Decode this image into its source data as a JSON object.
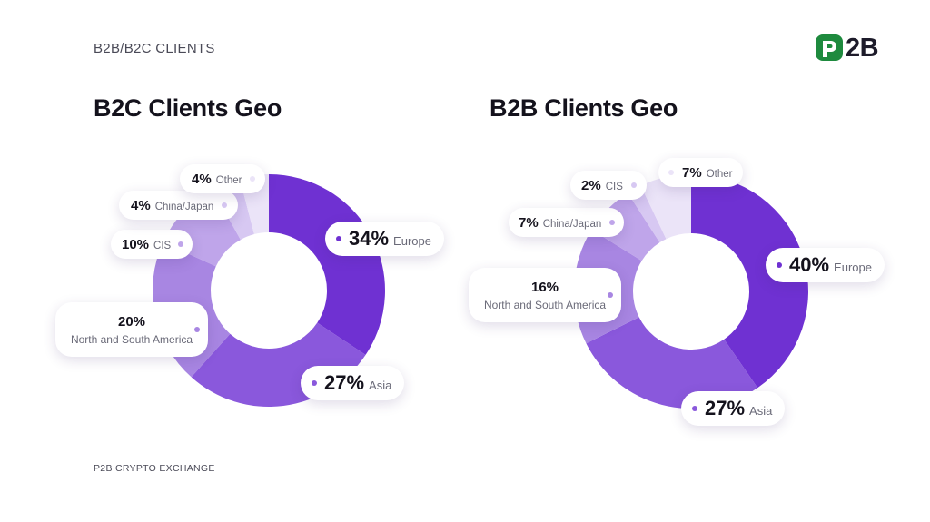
{
  "header": {
    "section_label": "B2B/B2C CLIENTS",
    "logo_text": "2B"
  },
  "footer": {
    "text": "P2B CRYPTO EXCHANGE"
  },
  "colors": {
    "brand_green": "#1e8a3e",
    "text_dark": "#14121c",
    "text_muted": "#6a6a78"
  },
  "chart_data": [
    {
      "type": "donut",
      "title": "B2C Clients Geo",
      "categories": [
        "Europe",
        "Asia",
        "North and South America",
        "CIS",
        "China/Japan",
        "Other"
      ],
      "values": [
        34,
        27,
        20,
        10,
        4,
        4
      ],
      "labels": [
        "34%",
        "27%",
        "20%",
        "10%",
        "4%",
        "4%"
      ],
      "colors": [
        "#6f31d2",
        "#8a58dc",
        "#a886e2",
        "#bfa5ea",
        "#d7c8f2",
        "#ebe4f8"
      ]
    },
    {
      "type": "donut",
      "title": "B2B Clients Geo",
      "categories": [
        "Europe",
        "Asia",
        "North and South America",
        "China/Japan",
        "CIS",
        "Other"
      ],
      "values": [
        40,
        27,
        16,
        7,
        2,
        7
      ],
      "labels": [
        "40%",
        "27%",
        "16%",
        "7%",
        "2%",
        "7%"
      ],
      "colors": [
        "#6f31d2",
        "#8a58dc",
        "#a886e2",
        "#bfa5ea",
        "#d7c8f2",
        "#ebe4f8"
      ]
    }
  ]
}
